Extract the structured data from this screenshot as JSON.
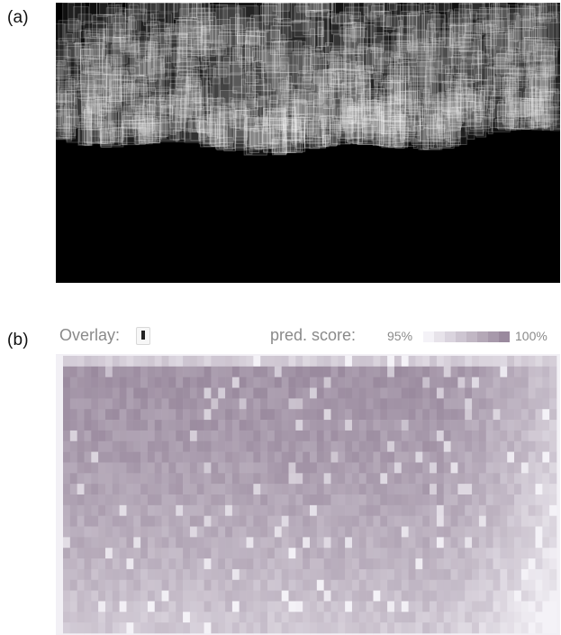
{
  "panel_a": {
    "label": "(a)"
  },
  "panel_b": {
    "label": "(b)",
    "overlay_label": "Overlay:",
    "score_label": "pred. score:",
    "score_min": "95%",
    "score_max": "100%",
    "colors": {
      "low": "#f4f2f7",
      "high": "#9a8a9e"
    }
  }
}
